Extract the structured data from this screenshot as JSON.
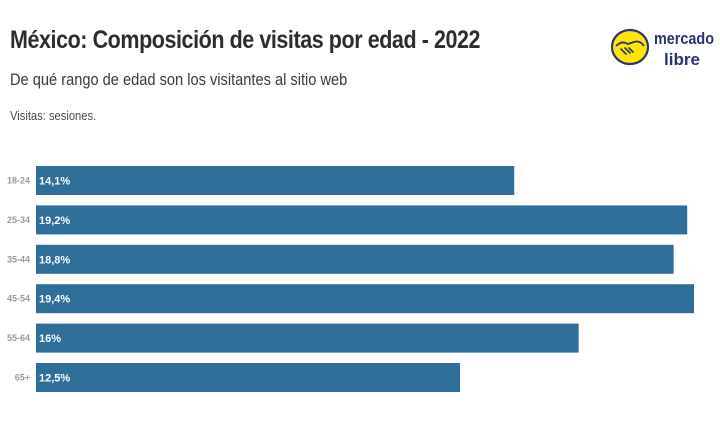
{
  "header": {
    "title": "México: Composición de visitas por edad - 2022",
    "subtitle": "De qué rango de edad son los visitantes al sitio web",
    "note": "Visitas: sesiones."
  },
  "logo": {
    "line1": "mercado",
    "line2": "libre",
    "icon": "handshake-icon"
  },
  "colors": {
    "bar": "#2e6e99",
    "logo_yellow": "#ffe600",
    "logo_navy": "#2d3277"
  },
  "chart_data": {
    "type": "bar",
    "orientation": "horizontal",
    "categories": [
      "18-24",
      "25-34",
      "35-44",
      "45-54",
      "55-64",
      "65+"
    ],
    "values": [
      14.1,
      19.2,
      18.8,
      19.4,
      16,
      12.5
    ],
    "value_labels": [
      "14,1%",
      "19,2%",
      "18,8%",
      "19,4%",
      "16%",
      "12,5%"
    ],
    "xlim": [
      0,
      19.4
    ],
    "grid": false,
    "legend": "none"
  }
}
